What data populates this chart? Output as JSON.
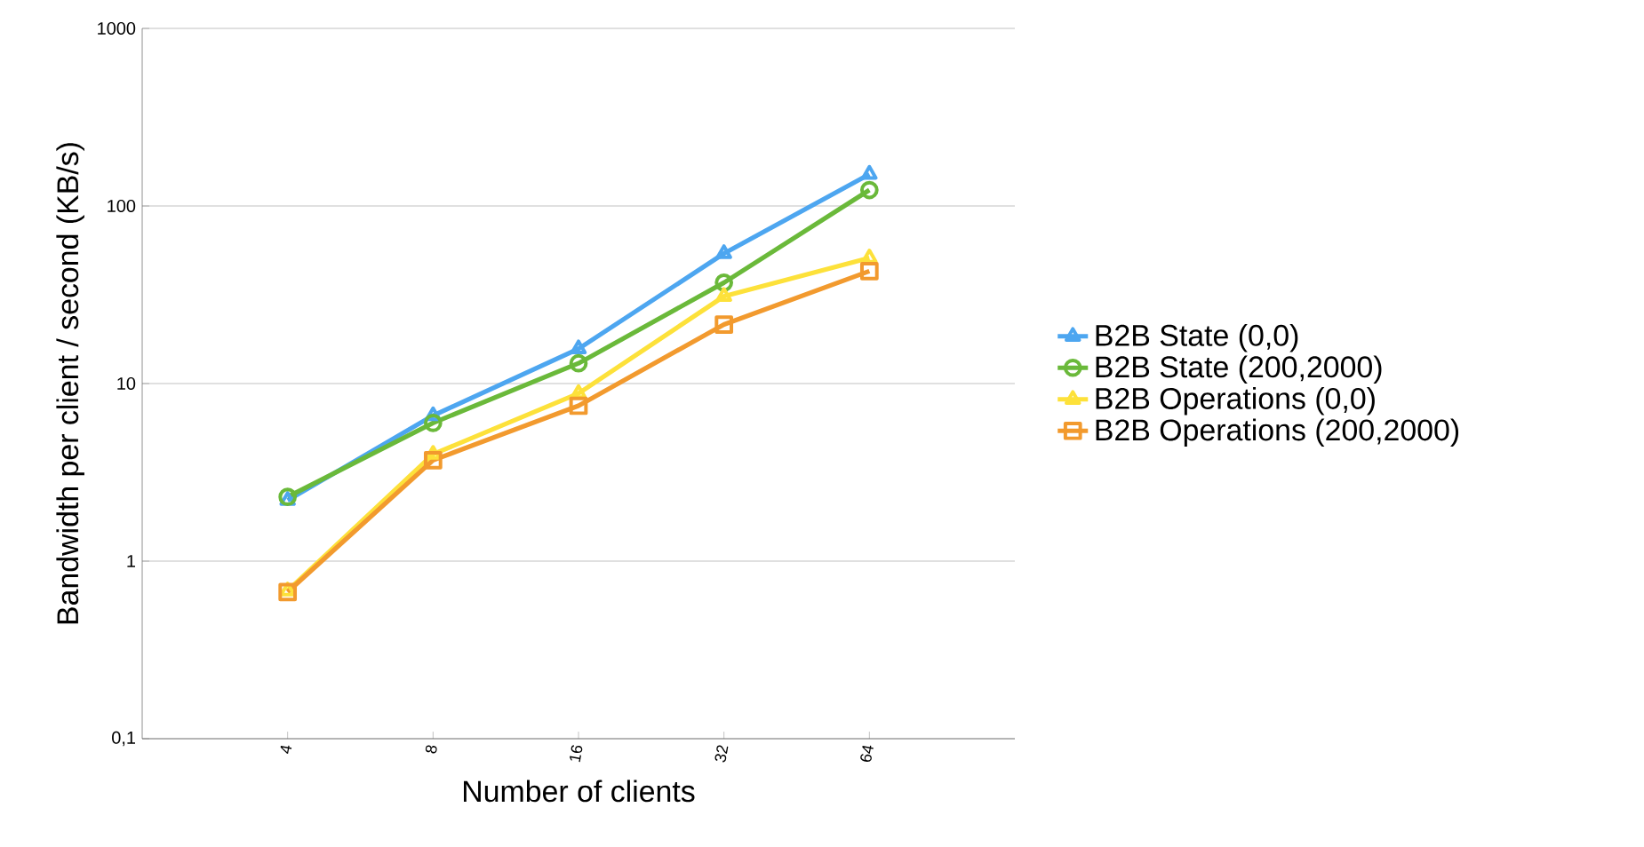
{
  "chart_data": {
    "type": "line",
    "xlabel": "Number of clients",
    "ylabel": "Bandwidth per client / second (KB/s)",
    "categories": [
      "4",
      "8",
      "16",
      "32",
      "64"
    ],
    "log": "y",
    "ylim": [
      0.1,
      1000
    ],
    "yticks": [
      {
        "value": 0.1,
        "label": "0,1"
      },
      1,
      10,
      100,
      1000
    ],
    "grid": "y",
    "legend": "right",
    "line_style": "solid",
    "series": [
      {
        "name": "B2B State (0,0)",
        "color": "#4da6f0",
        "marker": "triangle",
        "values": [
          2.2,
          6.6,
          15.7,
          54,
          151
        ]
      },
      {
        "name": "B2B State (200,2000)",
        "color": "#6ab93a",
        "marker": "circle",
        "values": [
          2.3,
          6.0,
          13,
          37,
          123
        ]
      },
      {
        "name": "B2B Operations (0,0)",
        "color": "#fde13a",
        "marker": "triangle",
        "values": [
          0.68,
          4.0,
          8.8,
          31,
          51
        ]
      },
      {
        "name": "B2B Operations (200,2000)",
        "color": "#f29a2e",
        "marker": "square",
        "values": [
          0.67,
          3.7,
          7.5,
          21.5,
          43
        ]
      }
    ]
  }
}
